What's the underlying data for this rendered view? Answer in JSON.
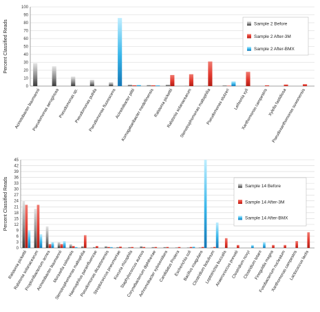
{
  "chart_data": [
    {
      "type": "bar",
      "ylabel": "Percent Classified Reads",
      "xlabel": "",
      "ylim": [
        0,
        100
      ],
      "yticks": [
        0,
        10,
        20,
        30,
        40,
        50,
        60,
        70,
        80,
        90,
        100
      ],
      "grid": true,
      "legend_position": "right",
      "categories": [
        "Acinetobacter baumannii",
        "Pseudomonas aeruginosa",
        "Pseudomonas sp.",
        "Pseudomonas putida",
        "Pseudomonas fluorescens",
        "Acinetobacter pittii",
        "Komagataeibacter medellinensis",
        "Ralstonia pickettii",
        "Ralstonia solanacearum",
        "Stenotrophomonas maltophilia",
        "Pseudomonas stutzeri",
        "Leifsonia xyli",
        "Xanthomonas campestris",
        "Xylella fastidiosa",
        "Pseudoxanthomonas suwonensis"
      ],
      "series": [
        {
          "name": "Sample 2 Before",
          "color": "#555555",
          "values": [
            29,
            25,
            12,
            8,
            5,
            2,
            1.5,
            2,
            0.5,
            0.5,
            1,
            0,
            0,
            0,
            0
          ]
        },
        {
          "name": "Sample 2 After-3M",
          "color": "#e2382d",
          "values": [
            0,
            0,
            0,
            0,
            0,
            1,
            1,
            14,
            15,
            31,
            0.5,
            18,
            1,
            2,
            2.5
          ]
        },
        {
          "name": "Sample 2 After-BMX",
          "color": "#38b6ea",
          "values": [
            0,
            0,
            0,
            0,
            86,
            1.5,
            1,
            0,
            0,
            0,
            6,
            0,
            0,
            0,
            0
          ]
        }
      ]
    },
    {
      "type": "bar",
      "ylabel": "Percent Classified Reads",
      "xlabel": "",
      "ylim": [
        0,
        45
      ],
      "yticks": [
        0,
        3,
        6,
        9,
        12,
        15,
        18,
        21,
        24,
        27,
        30,
        33,
        36,
        39,
        42,
        45
      ],
      "grid": true,
      "legend_position": "right",
      "categories": [
        "Ralstonia pickettii",
        "Ralstonia solanacearum",
        "Propionibacterium acnes",
        "Acinetobacter baumannii",
        "Moraxella osloensis",
        "Stenotrophomonas maltophilia",
        "Haemophilus parainfluenzae",
        "Pseudomonas dicastonensis",
        "Streptococcus pneumoniae",
        "Kocuria rhizophila",
        "Staphylococcus aureus",
        "Corynebacterium diphtheriae",
        "Achromobacter xylosoxidans",
        "Candidatus Protera",
        "Escherichia coli",
        "Bacillus coagulans",
        "Clostridium botulinum",
        "Leptotrichia buccalis",
        "Anaerococcus prevotii",
        "Clostridium novyi",
        "Clostridium tetani",
        "Finegoldia magna",
        "Fusobacterium nucleatum",
        "Xanthomonas campestris",
        "Lactococcus lactis"
      ],
      "series": [
        {
          "name": "Sample 14 Before",
          "color": "#555555",
          "values": [
            24,
            20,
            11,
            3,
            2,
            1,
            0.5,
            1,
            0.5,
            0.5,
            1,
            0.5,
            0.5,
            0.3,
            0.3,
            0.3,
            0.3,
            0,
            0,
            0,
            0,
            0,
            0,
            0,
            0
          ]
        },
        {
          "name": "Sample 14 After-3M",
          "color": "#e2382d",
          "values": [
            22,
            22,
            2,
            2,
            1,
            6.5,
            1,
            0.5,
            0.7,
            0.5,
            0.5,
            0.5,
            0.5,
            0.5,
            0.5,
            0.5,
            0.5,
            5,
            1.5,
            0,
            0,
            1.5,
            1.5,
            3.5,
            8
          ]
        },
        {
          "name": "Sample 14 After-BMX",
          "color": "#38b6ea",
          "values": [
            9,
            7,
            3,
            3.5,
            0.5,
            0,
            0,
            0.5,
            0,
            0,
            0,
            0,
            0,
            0,
            0.7,
            45,
            13,
            0,
            0,
            1.5,
            3,
            0,
            0,
            0,
            0
          ]
        }
      ]
    }
  ]
}
